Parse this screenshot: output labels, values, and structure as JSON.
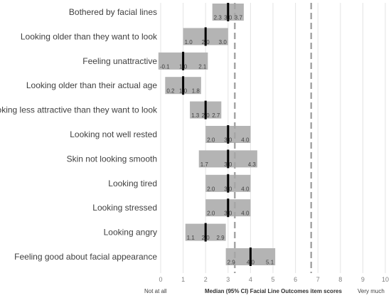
{
  "chart_data": {
    "type": "bar",
    "title": "",
    "xlabel": "Median (95% CI) Facial Line Outcomes item scores",
    "x_left_text": "Not at all",
    "x_right_text": "Very much",
    "xlim": [
      0,
      10
    ],
    "ticks": [
      "0",
      "1",
      "2",
      "3",
      "4",
      "5",
      "6",
      "7",
      "8",
      "9",
      "10"
    ],
    "grid": "vertical",
    "reference_lines": [
      3.3,
      6.7
    ],
    "categories": [
      "Bothered by facial lines",
      "Looking older than they want to look",
      "Feeling unattractive",
      "Looking older than their actual age",
      "Looking less attractive than they want to look",
      "Looking not well rested",
      "Skin not looking smooth",
      "Looking tired",
      "Looking stressed",
      "Looking angry",
      "Feeling good about facial appearance"
    ],
    "median": [
      3.0,
      2.0,
      1.0,
      1.0,
      2.0,
      3.0,
      3.0,
      3.0,
      3.0,
      2.0,
      4.0
    ],
    "ci_low": [
      2.3,
      1.0,
      -0.1,
      0.2,
      1.3,
      2.0,
      1.7,
      2.0,
      2.0,
      1.1,
      2.9
    ],
    "ci_high": [
      3.7,
      3.0,
      2.1,
      1.8,
      2.7,
      4.0,
      4.3,
      4.0,
      4.0,
      2.9,
      5.1
    ],
    "median_labels": [
      "3.0",
      "2.0",
      "1.0",
      "1.0",
      "2.0",
      "3.0",
      "3.0",
      "3.0",
      "3.0",
      "2.0",
      "4.0"
    ],
    "ci_low_labels": [
      "2.3",
      "1.0",
      "-0.1",
      "0.2",
      "1.3",
      "2.0",
      "1.7",
      "2.0",
      "2.0",
      "1.1",
      "2.9"
    ],
    "ci_high_labels": [
      "3.7",
      "3.0",
      "2.1",
      "1.8",
      "2.7",
      "4.0",
      "4.3",
      "4.0",
      "4.0",
      "2.9",
      "5.1"
    ],
    "colors": {
      "ci_bar": "#b4b4b4",
      "median_line": "#000000",
      "reference_line": "#a6a6a6",
      "grid": "#e3e3e3"
    }
  }
}
